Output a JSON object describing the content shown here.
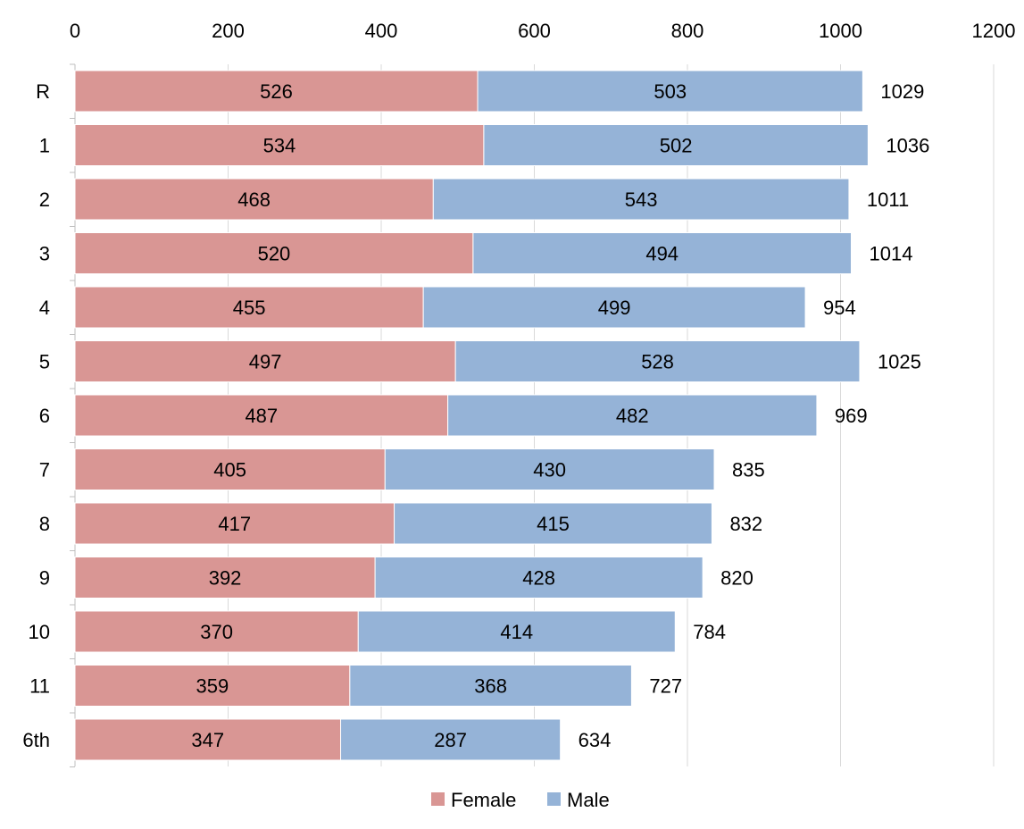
{
  "chart_data": {
    "type": "bar",
    "orientation": "horizontal",
    "stacked": true,
    "title": "",
    "xlabel": "",
    "ylabel": "",
    "categories": [
      "R",
      "1",
      "2",
      "3",
      "4",
      "5",
      "6",
      "7",
      "8",
      "9",
      "10",
      "11",
      "6th"
    ],
    "series": [
      {
        "name": "Female",
        "color": "#d99694",
        "values": [
          526,
          534,
          468,
          520,
          455,
          497,
          487,
          405,
          417,
          392,
          370,
          359,
          347
        ]
      },
      {
        "name": "Male",
        "color": "#95b3d7",
        "values": [
          503,
          502,
          543,
          494,
          499,
          528,
          482,
          430,
          415,
          428,
          414,
          368,
          287
        ]
      }
    ],
    "totals": [
      1029,
      1036,
      1011,
      1014,
      954,
      1025,
      969,
      835,
      832,
      820,
      784,
      727,
      634
    ],
    "xlim": [
      0,
      1200
    ],
    "xticks": [
      0,
      200,
      400,
      600,
      800,
      1000,
      1200
    ],
    "xaxis_position": "top",
    "grid": "vertical",
    "legend": "bottom-center",
    "data_labels": "inside-center",
    "total_labels": "outside-end"
  }
}
